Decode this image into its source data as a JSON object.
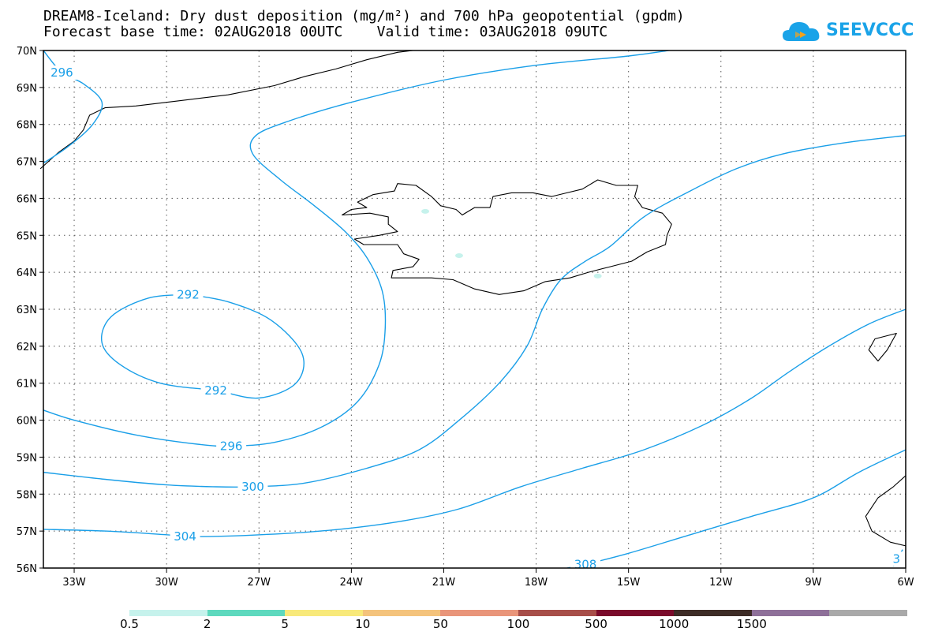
{
  "title": {
    "line1": "DREAM8-Iceland: Dry dust deposition (mg/m²) and 700 hPa geopotential (gpdm)",
    "line2": "Forecast base time: 02AUG2018 00UTC    Valid time: 03AUG2018 09UTC"
  },
  "logo": {
    "text": "SEEVCCC",
    "color": "#1aa3e8"
  },
  "map": {
    "lon_range": [
      -34,
      -6
    ],
    "lat_range": [
      56,
      70
    ],
    "lon_ticks": [
      {
        "lon": -33,
        "label": "33W"
      },
      {
        "lon": -30,
        "label": "30W"
      },
      {
        "lon": -27,
        "label": "27W"
      },
      {
        "lon": -24,
        "label": "24W"
      },
      {
        "lon": -21,
        "label": "21W"
      },
      {
        "lon": -18,
        "label": "18W"
      },
      {
        "lon": -15,
        "label": "15W"
      },
      {
        "lon": -12,
        "label": "12W"
      },
      {
        "lon": -9,
        "label": "9W"
      },
      {
        "lon": -6,
        "label": "6W"
      }
    ],
    "lat_ticks": [
      {
        "lat": 70,
        "label": "70N"
      },
      {
        "lat": 69,
        "label": "69N"
      },
      {
        "lat": 68,
        "label": "68N"
      },
      {
        "lat": 67,
        "label": "67N"
      },
      {
        "lat": 66,
        "label": "66N"
      },
      {
        "lat": 65,
        "label": "65N"
      },
      {
        "lat": 64,
        "label": "64N"
      },
      {
        "lat": 63,
        "label": "63N"
      },
      {
        "lat": 62,
        "label": "62N"
      },
      {
        "lat": 61,
        "label": "61N"
      },
      {
        "lat": 60,
        "label": "60N"
      },
      {
        "lat": 59,
        "label": "59N"
      },
      {
        "lat": 58,
        "label": "58N"
      },
      {
        "lat": 57,
        "label": "57N"
      },
      {
        "lat": 56,
        "label": "56N"
      }
    ],
    "contour_color": "#1a9fe8",
    "contours": [
      {
        "value": "292",
        "labels": [
          [
            -29.3,
            63.4
          ],
          [
            -28.4,
            60.8
          ]
        ],
        "points": [
          [
            -29.3,
            63.4
          ],
          [
            -28.0,
            63.2
          ],
          [
            -26.6,
            62.7
          ],
          [
            -25.6,
            61.8
          ],
          [
            -25.8,
            61.0
          ],
          [
            -27.0,
            60.6
          ],
          [
            -28.4,
            60.8
          ],
          [
            -30.2,
            61.0
          ],
          [
            -31.5,
            61.5
          ],
          [
            -32.1,
            62.1
          ],
          [
            -31.8,
            62.8
          ],
          [
            -30.6,
            63.3
          ],
          [
            -29.3,
            63.4
          ]
        ]
      },
      {
        "value": "296",
        "labels": [
          [
            -33.4,
            69.4
          ],
          [
            -27.9,
            59.3
          ]
        ],
        "points": [
          [
            -34.1,
            60.3
          ],
          [
            -33.0,
            60.0
          ],
          [
            -31.0,
            59.6
          ],
          [
            -29.0,
            59.35
          ],
          [
            -27.9,
            59.3
          ],
          [
            -26.5,
            59.4
          ],
          [
            -25.0,
            59.8
          ],
          [
            -23.8,
            60.5
          ],
          [
            -23.1,
            61.5
          ],
          [
            -22.9,
            62.5
          ],
          [
            -23.0,
            63.5
          ],
          [
            -23.5,
            64.4
          ],
          [
            -24.2,
            65.1
          ],
          [
            -25.2,
            65.8
          ],
          [
            -26.3,
            66.5
          ],
          [
            -27.2,
            67.2
          ],
          [
            -27.1,
            67.7
          ],
          [
            -26.0,
            68.1
          ],
          [
            -24.0,
            68.6
          ],
          [
            -21.0,
            69.2
          ],
          [
            -18.0,
            69.6
          ],
          [
            -15.0,
            69.85
          ],
          [
            -13.7,
            70.0
          ]
        ]
      },
      {
        "value": "296",
        "labels": [],
        "points": [
          [
            -34.0,
            70.0
          ],
          [
            -33.4,
            69.4
          ],
          [
            -32.7,
            69.1
          ],
          [
            -32.1,
            68.6
          ],
          [
            -32.4,
            68.0
          ],
          [
            -33.2,
            67.4
          ],
          [
            -34.1,
            66.9
          ]
        ]
      },
      {
        "value": "300",
        "labels": [
          [
            -27.2,
            58.2
          ]
        ],
        "points": [
          [
            -34.1,
            58.6
          ],
          [
            -32.0,
            58.4
          ],
          [
            -30.0,
            58.25
          ],
          [
            -28.5,
            58.2
          ],
          [
            -27.2,
            58.2
          ],
          [
            -25.5,
            58.3
          ],
          [
            -23.5,
            58.7
          ],
          [
            -21.8,
            59.2
          ],
          [
            -20.5,
            60.0
          ],
          [
            -19.2,
            61.0
          ],
          [
            -18.3,
            62.0
          ],
          [
            -17.8,
            63.0
          ],
          [
            -17.2,
            63.8
          ],
          [
            -16.4,
            64.3
          ],
          [
            -15.6,
            64.7
          ],
          [
            -14.5,
            65.5
          ],
          [
            -13.0,
            66.2
          ],
          [
            -11.5,
            66.8
          ],
          [
            -10.0,
            67.2
          ],
          [
            -8.0,
            67.5
          ],
          [
            -6.0,
            67.7
          ]
        ]
      },
      {
        "value": "304",
        "labels": [
          [
            -29.4,
            56.85
          ]
        ],
        "points": [
          [
            -34.1,
            57.05
          ],
          [
            -32.0,
            57.0
          ],
          [
            -30.0,
            56.9
          ],
          [
            -29.4,
            56.85
          ],
          [
            -27.5,
            56.88
          ],
          [
            -25.0,
            57.0
          ],
          [
            -22.5,
            57.25
          ],
          [
            -20.5,
            57.6
          ],
          [
            -18.5,
            58.2
          ],
          [
            -16.5,
            58.7
          ],
          [
            -14.5,
            59.2
          ],
          [
            -12.5,
            59.9
          ],
          [
            -11.0,
            60.6
          ],
          [
            -9.8,
            61.3
          ],
          [
            -8.5,
            62.0
          ],
          [
            -7.2,
            62.6
          ],
          [
            -6.0,
            63.0
          ]
        ]
      },
      {
        "value": "308",
        "labels": [
          [
            -16.4,
            56.1
          ]
        ],
        "points": [
          [
            -17.0,
            56.0
          ],
          [
            -16.4,
            56.1
          ],
          [
            -15.0,
            56.4
          ],
          [
            -13.0,
            56.9
          ],
          [
            -11.0,
            57.4
          ],
          [
            -9.0,
            57.9
          ],
          [
            -7.5,
            58.6
          ],
          [
            -6.0,
            59.2
          ]
        ]
      },
      {
        "value": "3",
        "labels": [
          [
            -6.3,
            56.25
          ]
        ],
        "points": [
          [
            -6.4,
            56.05
          ],
          [
            -6.1,
            56.5
          ]
        ]
      }
    ],
    "coastlines": {
      "iceland": [
        [
          -22.8,
          65.5
        ],
        [
          -23.4,
          65.6
        ],
        [
          -24.3,
          65.55
        ],
        [
          -24.0,
          65.7
        ],
        [
          -23.5,
          65.75
        ],
        [
          -23.8,
          65.9
        ],
        [
          -23.3,
          66.1
        ],
        [
          -22.6,
          66.2
        ],
        [
          -22.5,
          66.4
        ],
        [
          -21.9,
          66.35
        ],
        [
          -21.4,
          66.05
        ],
        [
          -21.1,
          65.8
        ],
        [
          -20.6,
          65.7
        ],
        [
          -20.4,
          65.55
        ],
        [
          -20.0,
          65.75
        ],
        [
          -19.5,
          65.75
        ],
        [
          -19.4,
          66.05
        ],
        [
          -18.8,
          66.15
        ],
        [
          -18.1,
          66.15
        ],
        [
          -17.5,
          66.05
        ],
        [
          -17.0,
          66.15
        ],
        [
          -16.5,
          66.25
        ],
        [
          -16.0,
          66.5
        ],
        [
          -15.4,
          66.35
        ],
        [
          -14.7,
          66.35
        ],
        [
          -14.8,
          66.05
        ],
        [
          -14.55,
          65.75
        ],
        [
          -13.9,
          65.6
        ],
        [
          -13.6,
          65.3
        ],
        [
          -13.75,
          65.0
        ],
        [
          -13.8,
          64.75
        ],
        [
          -14.4,
          64.55
        ],
        [
          -14.9,
          64.3
        ],
        [
          -15.6,
          64.15
        ],
        [
          -16.3,
          64.0
        ],
        [
          -16.9,
          63.85
        ],
        [
          -17.7,
          63.75
        ],
        [
          -18.4,
          63.5
        ],
        [
          -19.2,
          63.4
        ],
        [
          -20.0,
          63.55
        ],
        [
          -20.7,
          63.8
        ],
        [
          -21.4,
          63.85
        ],
        [
          -22.1,
          63.85
        ],
        [
          -22.7,
          63.85
        ],
        [
          -22.65,
          64.05
        ],
        [
          -22.0,
          64.15
        ],
        [
          -21.8,
          64.35
        ],
        [
          -22.3,
          64.5
        ],
        [
          -22.5,
          64.75
        ],
        [
          -23.6,
          64.75
        ],
        [
          -23.9,
          64.9
        ],
        [
          -23.1,
          65.0
        ],
        [
          -22.5,
          65.1
        ],
        [
          -22.8,
          65.3
        ],
        [
          -22.8,
          65.5
        ]
      ],
      "greenland": [
        [
          -34.1,
          66.8
        ],
        [
          -33.5,
          67.25
        ],
        [
          -33.0,
          67.55
        ],
        [
          -32.7,
          67.85
        ],
        [
          -32.5,
          68.25
        ],
        [
          -32.0,
          68.45
        ],
        [
          -31.0,
          68.5
        ],
        [
          -29.5,
          68.65
        ],
        [
          -28.0,
          68.8
        ],
        [
          -26.5,
          69.05
        ],
        [
          -25.5,
          69.3
        ],
        [
          -24.5,
          69.5
        ],
        [
          -23.5,
          69.75
        ],
        [
          -22.5,
          69.95
        ],
        [
          -22.0,
          70.0
        ]
      ],
      "scotland_north": [
        [
          -7.0,
          62.2
        ],
        [
          -6.3,
          62.35
        ],
        [
          -6.6,
          61.9
        ],
        [
          -6.9,
          61.6
        ],
        [
          -7.2,
          61.9
        ],
        [
          -7.0,
          62.2
        ]
      ],
      "scotland_south": [
        [
          -6.0,
          58.5
        ],
        [
          -6.4,
          58.2
        ],
        [
          -6.9,
          57.9
        ],
        [
          -7.3,
          57.4
        ],
        [
          -7.1,
          57.0
        ],
        [
          -6.5,
          56.7
        ],
        [
          -6.0,
          56.6
        ]
      ]
    },
    "dust_spots": [
      [
        -20.5,
        64.45
      ],
      [
        -21.6,
        65.65
      ],
      [
        -16.0,
        63.9
      ]
    ]
  },
  "colorbar": {
    "colors": [
      "#c6f2ec",
      "#5ed9be",
      "#f8e97a",
      "#f4c37c",
      "#e9957a",
      "#a74e49",
      "#7a0a2b",
      "#3d2c26",
      "#8e7099",
      "#a9a9a9"
    ],
    "labels": [
      "0.5",
      "2",
      "5",
      "10",
      "50",
      "100",
      "500",
      "1000",
      "1500"
    ]
  }
}
